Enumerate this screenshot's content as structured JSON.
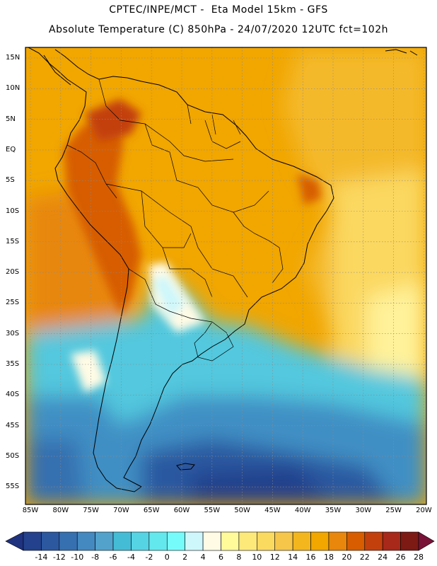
{
  "header": {
    "line1": "CPTEC/INPE/MCT -  Eta Model 15km - GFS",
    "line2": "Absolute Temperature (C) 850hPa - 24/07/2020 12UTC fct=102h"
  },
  "axes": {
    "lat_labels": [
      "15N",
      "10N",
      "5N",
      "EQ",
      "5S",
      "10S",
      "15S",
      "20S",
      "25S",
      "30S",
      "35S",
      "40S",
      "45S",
      "50S",
      "55S"
    ],
    "lon_labels": [
      "85W",
      "80W",
      "75W",
      "70W",
      "65W",
      "60W",
      "55W",
      "50W",
      "45W",
      "40W",
      "35W",
      "30W",
      "25W",
      "20W"
    ]
  },
  "colorbar": {
    "labels": [
      "-14",
      "-12",
      "-10",
      "-8",
      "-6",
      "-4",
      "-2",
      "0",
      "2",
      "4",
      "6",
      "8",
      "10",
      "12",
      "14",
      "16",
      "18",
      "20",
      "22",
      "24",
      "26",
      "28"
    ],
    "colors": [
      "#23418c",
      "#2c58a0",
      "#3670b0",
      "#4489c0",
      "#52a2cc",
      "#45bcd6",
      "#55d4e4",
      "#63e8ee",
      "#76fbfb",
      "#cdf7fb",
      "#fffbe5",
      "#fffa9a",
      "#fde97a",
      "#fbda60",
      "#f5c64a",
      "#f3b61c",
      "#f1a600",
      "#e8870c",
      "#d75d00",
      "#c3400d",
      "#a8281a",
      "#7d1a14"
    ],
    "low_color": "#1f3280",
    "high_color": "#7a1238"
  }
}
